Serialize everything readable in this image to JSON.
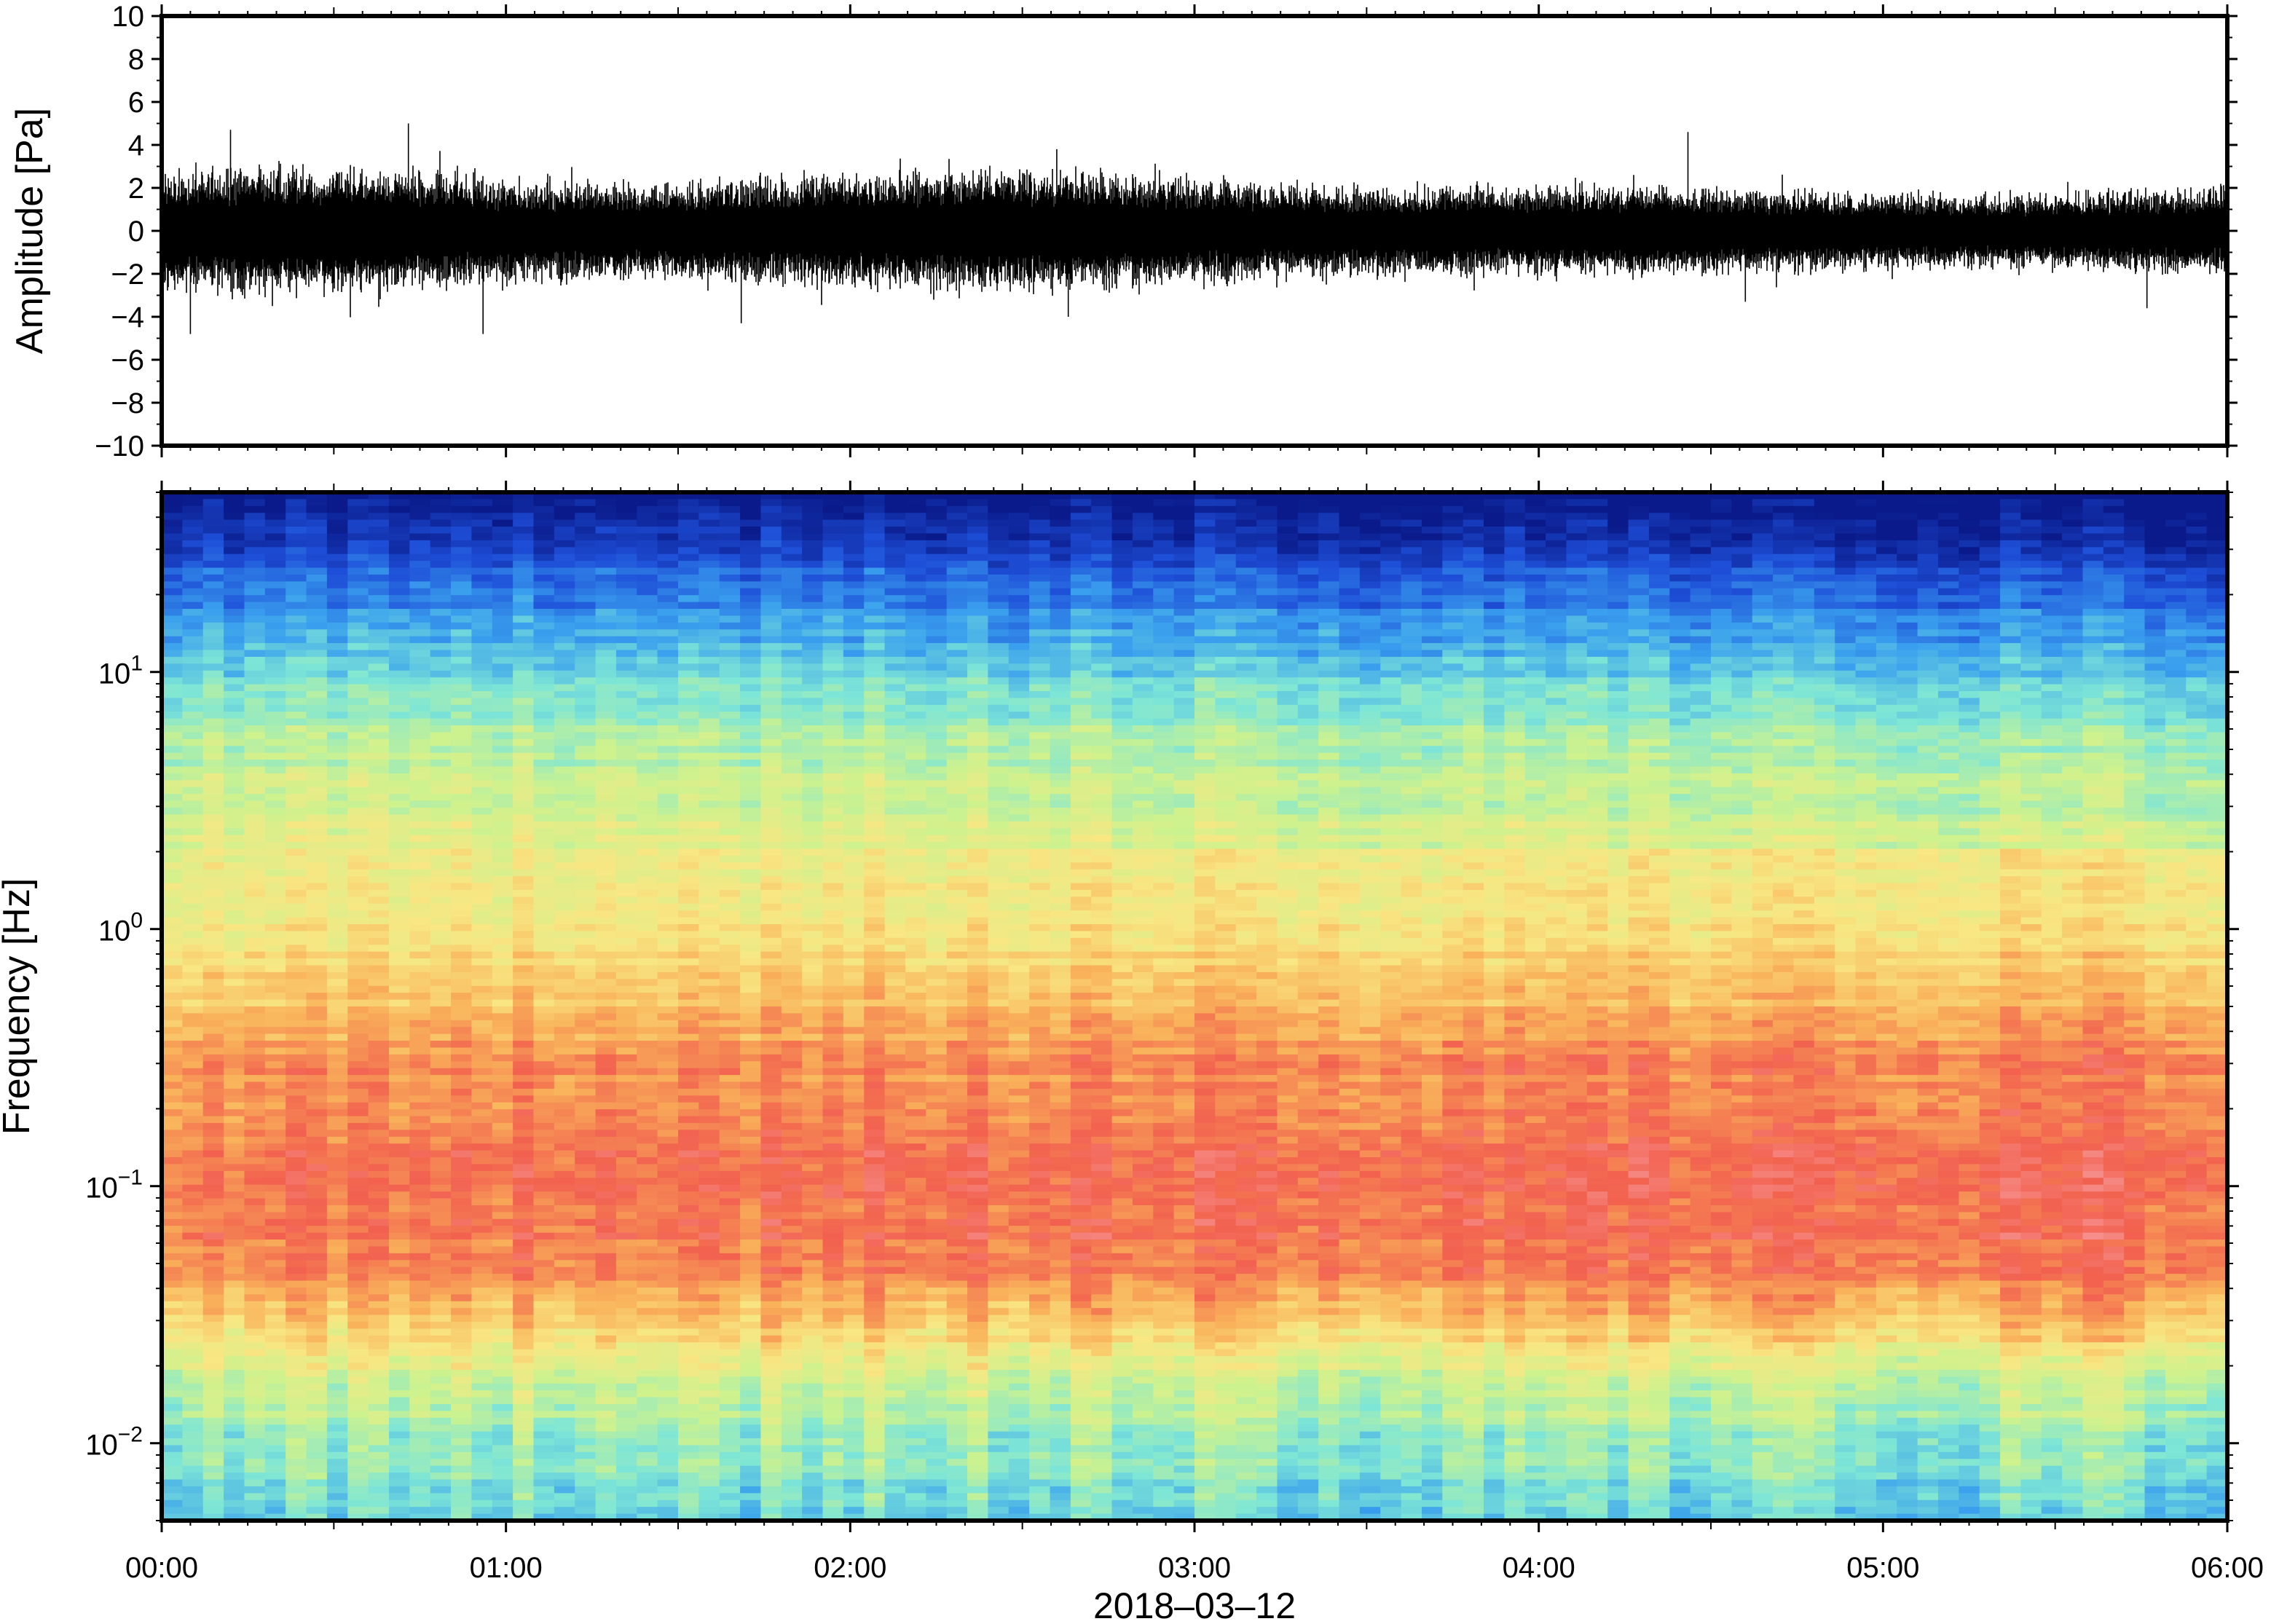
{
  "chart_data": [
    {
      "type": "line",
      "title": "",
      "xlabel": "",
      "ylabel": "Amplitude [Pa]",
      "ylim": [
        -10,
        10
      ],
      "yticks": [
        10,
        8,
        6,
        4,
        2,
        0,
        -2,
        -4,
        -6,
        -8,
        -10
      ],
      "ytick_labels": [
        "10",
        "8",
        "6",
        "4",
        "2",
        "0",
        "−2",
        "−4",
        "−6",
        "−8",
        "−10"
      ],
      "x_range": [
        "00:00",
        "06:00"
      ],
      "grid": false,
      "series_color": "#000000",
      "envelope_hours": [
        0,
        0.5,
        1,
        1.5,
        2,
        2.5,
        3,
        3.5,
        4,
        4.5,
        5,
        5.5,
        6
      ],
      "envelope_amplitude": [
        2.5,
        2.7,
        2.2,
        2.0,
        2.4,
        2.6,
        2.2,
        1.8,
        1.9,
        1.8,
        1.6,
        1.6,
        1.8
      ],
      "peaks": [
        {
          "time": "00:12",
          "value": 4.7
        },
        {
          "time": "00:05",
          "value": -4.8
        },
        {
          "time": "00:43",
          "value": 5.0
        },
        {
          "time": "00:56",
          "value": -4.8
        },
        {
          "time": "01:41",
          "value": -4.3
        },
        {
          "time": "02:36",
          "value": 3.8
        },
        {
          "time": "02:38",
          "value": -4.0
        },
        {
          "time": "04:26",
          "value": 4.6
        },
        {
          "time": "04:36",
          "value": -3.3
        },
        {
          "time": "05:46",
          "value": -3.6
        }
      ]
    },
    {
      "type": "heatmap",
      "title": "",
      "ylabel": "Frequency [Hz]",
      "xlabel": "2018–03–12",
      "yscale": "log",
      "ylim": [
        0.005,
        50
      ],
      "ytick_labels": [
        {
          "base": "10",
          "exp": "1",
          "value": 10
        },
        {
          "base": "10",
          "exp": "0",
          "value": 1
        },
        {
          "base": "10",
          "exp": "−1",
          "value": 0.1
        },
        {
          "base": "10",
          "exp": "−2",
          "value": 0.01
        }
      ],
      "xtick_labels": [
        "00:00",
        "01:00",
        "02:00",
        "03:00",
        "04:00",
        "05:00",
        "06:00"
      ],
      "colormap": [
        "#0a1a8a",
        "#1e4fd8",
        "#3aa0ee",
        "#7ee6d6",
        "#cdf28e",
        "#f8e783",
        "#f9b25a",
        "#f2614f",
        "#f8a4a8"
      ],
      "grid": false
    }
  ]
}
